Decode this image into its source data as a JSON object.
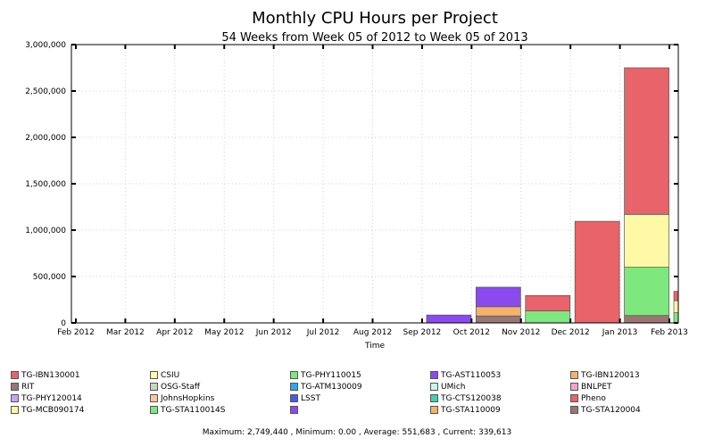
{
  "chart_data": {
    "type": "bar",
    "stacked": true,
    "title": "Monthly CPU Hours per Project",
    "subtitle": "54 Weeks from Week 05 of 2012 to Week 05 of 2013",
    "xlabel": "Time",
    "ylabel": "",
    "ylim": [
      0,
      3000000
    ],
    "yticks": [
      0,
      500000,
      1000000,
      1500000,
      2000000,
      2500000,
      3000000
    ],
    "ytick_labels": [
      "0",
      "500,000",
      "1,000,000",
      "1,500,000",
      "2,000,000",
      "2,500,000",
      "3,000,000"
    ],
    "xtick_labels": [
      "Feb 2012",
      "Mar 2012",
      "Apr 2012",
      "May 2012",
      "Jun 2012",
      "Jul 2012",
      "Aug 2012",
      "Sep 2012",
      "Oct 2012",
      "Nov 2012",
      "Dec 2012",
      "Jan 2013",
      "Feb 2013"
    ],
    "grid": true,
    "legend_position": "bottom",
    "categories": [
      "Feb 2012",
      "Mar 2012",
      "Apr 2012",
      "May 2012",
      "Jun 2012",
      "Jul 2012",
      "Aug 2012",
      "Sep 2012",
      "Oct 2012",
      "Nov 2012",
      "Dec 2012",
      "Jan 2013",
      "Feb 2013"
    ],
    "series": [
      {
        "name": "TG-STA120004",
        "color": "#9a7575",
        "values": [
          0,
          0,
          0,
          0,
          0,
          0,
          0,
          0,
          75000,
          0,
          0,
          80000,
          0
        ]
      },
      {
        "name": "TG-STA110014S",
        "color": "#7ee87e",
        "values": [
          0,
          0,
          0,
          0,
          0,
          0,
          0,
          0,
          0,
          130000,
          0,
          520000,
          110000
        ]
      },
      {
        "name": "TG-MCB090174",
        "color": "#fff8a5",
        "values": [
          0,
          0,
          0,
          0,
          0,
          0,
          0,
          0,
          0,
          0,
          0,
          570000,
          130000
        ]
      },
      {
        "name": "TG-STA110009",
        "color": "#f6b26b",
        "values": [
          0,
          0,
          0,
          0,
          0,
          0,
          0,
          0,
          100000,
          0,
          0,
          0,
          0
        ]
      },
      {
        "name": "TG-AST110053",
        "color": "#8a4af0",
        "values": [
          0,
          0,
          0,
          0,
          0,
          0,
          0,
          85000,
          210000,
          0,
          0,
          0,
          0
        ]
      },
      {
        "name": "TG-IBN130001",
        "color": "#e8636a",
        "values": [
          0,
          0,
          0,
          0,
          0,
          0,
          0,
          0,
          0,
          165000,
          1095000,
          1580000,
          99613
        ]
      }
    ],
    "legend": [
      {
        "name": "TG-IBN130001",
        "color": "#e8636a"
      },
      {
        "name": "CSIU",
        "color": "#fff8a5"
      },
      {
        "name": "TG-PHY110015",
        "color": "#7ee87e"
      },
      {
        "name": "TG-AST110053",
        "color": "#8a4af0"
      },
      {
        "name": "TG-IBN120013",
        "color": "#f6b26b"
      },
      {
        "name": "RIT",
        "color": "#9a7575"
      },
      {
        "name": "OSG-Staff",
        "color": "#c9d6b9"
      },
      {
        "name": "TG-ATM130009",
        "color": "#29a8f0"
      },
      {
        "name": "UMich",
        "color": "#c8f3f3"
      },
      {
        "name": "BNLPET",
        "color": "#f5a3c6"
      },
      {
        "name": "TG-PHY120014",
        "color": "#c9a3f2"
      },
      {
        "name": "JohnsHopkins",
        "color": "#f7c79c"
      },
      {
        "name": "LSST",
        "color": "#4c58e8"
      },
      {
        "name": "TG-CTS120038",
        "color": "#40d0b8"
      },
      {
        "name": "Pheno",
        "color": "#e8636a"
      },
      {
        "name": "TG-MCB090174",
        "color": "#fff8a5"
      },
      {
        "name": "TG-STA110014S",
        "color": "#7ee87e"
      },
      {
        "name": "",
        "color": "#8a4af0"
      },
      {
        "name": "TG-STA110009",
        "color": "#f6b26b"
      },
      {
        "name": "TG-STA120004",
        "color": "#9a7575"
      }
    ],
    "footer": "Maximum: 2,749,440 , Minimum: 0.00 , Average: 551,683 , Current: 339,613"
  }
}
